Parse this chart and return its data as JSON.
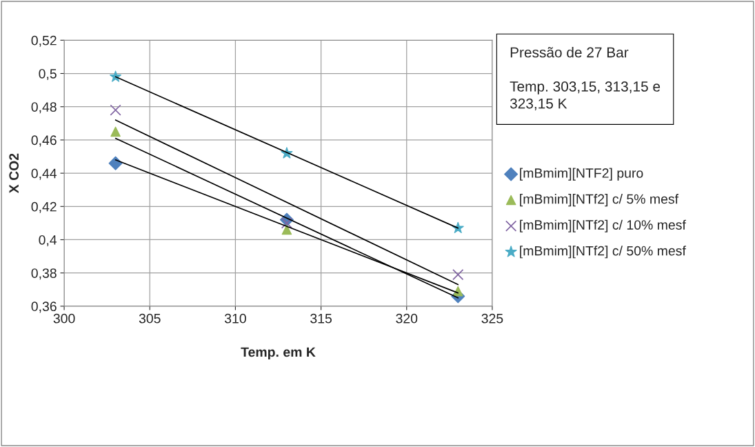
{
  "chart_data": {
    "type": "scatter",
    "xlabel": "Temp. em K",
    "ylabel": "X CO2",
    "annotations": [
      "Pressão de 27 Bar\n\nTemp. 303,15, 313,15 e\n323,15 K"
    ],
    "xlim": [
      300,
      325
    ],
    "xticks": [
      300,
      305,
      310,
      315,
      320,
      325
    ],
    "ylim": [
      0.36,
      0.52
    ],
    "yticks": [
      {
        "value": 0.36,
        "label": "0,36"
      },
      {
        "value": 0.38,
        "label": "0,38"
      },
      {
        "value": 0.4,
        "label": "0,4"
      },
      {
        "value": 0.42,
        "label": "0,42"
      },
      {
        "value": 0.44,
        "label": "0,44"
      },
      {
        "value": 0.46,
        "label": "0,46"
      },
      {
        "value": 0.48,
        "label": "0,48"
      },
      {
        "value": 0.5,
        "label": "0,5"
      },
      {
        "value": 0.52,
        "label": "0,52"
      }
    ],
    "grid": true,
    "legend": "right",
    "series": [
      {
        "name": "[mBmim][NTF2] puro",
        "color": "#4f81bd",
        "marker": "diamond",
        "x": [
          303,
          313,
          323
        ],
        "values": [
          0.446,
          0.412,
          0.366
        ]
      },
      {
        "name": "[mBmim][NTf2] c/ 5% mesf",
        "color": "#9bbb59",
        "marker": "triangle",
        "x": [
          303,
          313,
          323
        ],
        "values": [
          0.465,
          0.406,
          0.369
        ]
      },
      {
        "name": "[mBmim][NTf2] c/ 10% mesf",
        "color": "#8064a2",
        "marker": "cross",
        "x": [
          303,
          313,
          323
        ],
        "values": [
          0.478,
          0.41,
          0.379
        ]
      },
      {
        "name": "[mBmim][NTf2] c/ 50% mesf",
        "color": "#4bacc6",
        "marker": "star",
        "x": [
          303,
          313,
          323
        ],
        "values": [
          0.498,
          0.452,
          0.407
        ]
      },
      {
        "type": "line",
        "color": "#000000",
        "x": [
          303,
          323
        ],
        "values": [
          0.448,
          0.368
        ]
      },
      {
        "type": "line",
        "color": "#000000",
        "x": [
          303,
          323
        ],
        "values": [
          0.461,
          0.365
        ]
      },
      {
        "type": "line",
        "color": "#000000",
        "x": [
          303,
          323
        ],
        "values": [
          0.472,
          0.373
        ]
      },
      {
        "type": "line",
        "color": "#000000",
        "x": [
          303,
          323
        ],
        "values": [
          0.498,
          0.407
        ]
      }
    ]
  }
}
